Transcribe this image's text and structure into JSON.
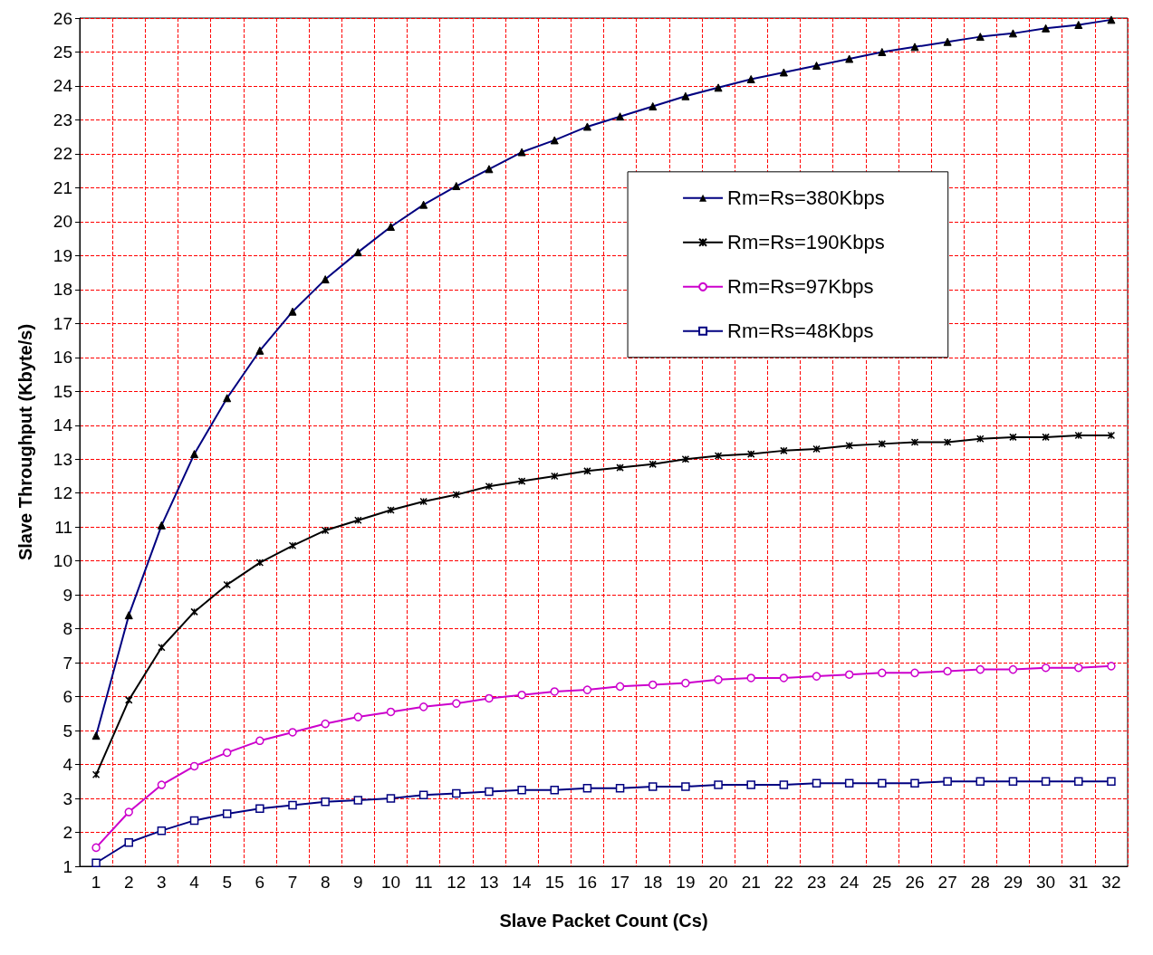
{
  "chart_data": {
    "type": "line",
    "xlabel": "Slave Packet Count (Cs)",
    "ylabel": "Slave Throughput (Kbyte/s)",
    "categories": [
      "1",
      "2",
      "3",
      "4",
      "5",
      "6",
      "7",
      "8",
      "9",
      "10",
      "11",
      "12",
      "13",
      "14",
      "15",
      "16",
      "17",
      "18",
      "19",
      "20",
      "21",
      "22",
      "23",
      "24",
      "25",
      "26",
      "27",
      "28",
      "29",
      "30",
      "31",
      "32"
    ],
    "ylim": [
      1,
      26
    ],
    "yticks": [
      1,
      2,
      3,
      4,
      5,
      6,
      7,
      8,
      9,
      10,
      11,
      12,
      13,
      14,
      15,
      16,
      17,
      18,
      19,
      20,
      21,
      22,
      23,
      24,
      25,
      26
    ],
    "grid": true,
    "legend": "top right",
    "line_style": "solid",
    "series": [
      {
        "name": "Rm=Rs=380Kbps",
        "color": "#000080",
        "marker": "triangle",
        "values": [
          4.85,
          8.4,
          11.05,
          13.15,
          14.8,
          16.2,
          17.35,
          18.3,
          19.1,
          19.85,
          20.5,
          21.05,
          21.55,
          22.05,
          22.4,
          22.8,
          23.1,
          23.4,
          23.7,
          23.95,
          24.2,
          24.4,
          24.6,
          24.8,
          25.0,
          25.15,
          25.3,
          25.45,
          25.55,
          25.7,
          25.8,
          25.95
        ]
      },
      {
        "name": "Rm=Rs=190Kbps",
        "color": "#000000",
        "marker": "cross",
        "values": [
          3.7,
          5.9,
          7.45,
          8.5,
          9.3,
          9.95,
          10.45,
          10.9,
          11.2,
          11.5,
          11.75,
          11.95,
          12.2,
          12.35,
          12.5,
          12.65,
          12.75,
          12.85,
          13.0,
          13.1,
          13.15,
          13.25,
          13.3,
          13.4,
          13.45,
          13.5,
          13.5,
          13.6,
          13.65,
          13.65,
          13.7,
          13.7
        ]
      },
      {
        "name": "Rm=Rs=97Kbps",
        "color": "#cc00cc",
        "marker": "circle",
        "values": [
          1.55,
          2.6,
          3.4,
          3.95,
          4.35,
          4.7,
          4.95,
          5.2,
          5.4,
          5.55,
          5.7,
          5.8,
          5.95,
          6.05,
          6.15,
          6.2,
          6.3,
          6.35,
          6.4,
          6.5,
          6.55,
          6.55,
          6.6,
          6.65,
          6.7,
          6.7,
          6.75,
          6.8,
          6.8,
          6.85,
          6.85,
          6.9
        ]
      },
      {
        "name": "Rm=Rs=48Kbps",
        "color": "#000080",
        "marker": "square",
        "values": [
          1.1,
          1.7,
          2.05,
          2.35,
          2.55,
          2.7,
          2.8,
          2.9,
          2.95,
          3.0,
          3.1,
          3.15,
          3.2,
          3.25,
          3.25,
          3.3,
          3.3,
          3.35,
          3.35,
          3.4,
          3.4,
          3.4,
          3.45,
          3.45,
          3.45,
          3.45,
          3.5,
          3.5,
          3.5,
          3.5,
          3.5,
          3.5
        ]
      }
    ]
  }
}
